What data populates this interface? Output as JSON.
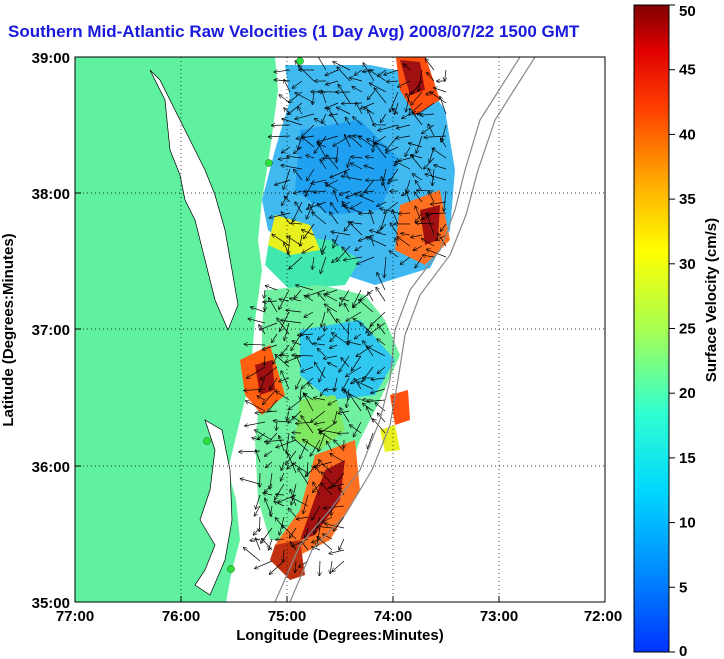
{
  "title": "Southern Mid-Atlantic Raw Velocities (1 Day Avg) 2008/07/22 1500 GMT",
  "axes": {
    "xlabel": "Longitude (Degrees:Minutes)",
    "ylabel": "Latitude (Degrees:Minutes)",
    "x_ticks": [
      "77:00",
      "76:00",
      "75:00",
      "74:00",
      "73:00",
      "72:00"
    ],
    "y_ticks": [
      "39:00",
      "38:00",
      "37:00",
      "36:00",
      "35:00"
    ],
    "xlim": [
      -77,
      -72
    ],
    "ylim": [
      35,
      39
    ],
    "grid": true
  },
  "colorbar": {
    "label": "Surface Velocity (cm/s)",
    "ticks": [
      "50",
      "45",
      "40",
      "35",
      "30",
      "25",
      "20",
      "15",
      "10",
      "5",
      "0"
    ],
    "range": [
      0,
      50
    ],
    "colormap": "jet"
  },
  "colors": {
    "land": "#5ff0a0",
    "title": "#1a1adc",
    "station": "#2ee03a"
  }
}
